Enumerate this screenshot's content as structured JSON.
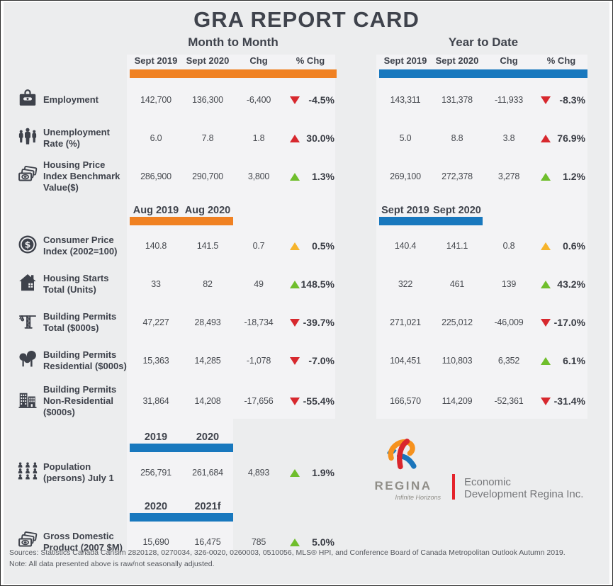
{
  "title": "GRA REPORT CARD",
  "colors": {
    "background": "#ECEDEE",
    "month_to_month_bar": "#F08122",
    "year_to_date_bar": "#1878BE",
    "trend_down_red": "#D7282E",
    "trend_up_green": "#6FBE2C",
    "trend_up_amber": "#F6B42C",
    "logo_divider_red": "#E5232B",
    "text_dark": "#3F434C"
  },
  "sections": {
    "mtm": {
      "title": "Month to Month",
      "columns": [
        "Sept 2019",
        "Sept 2020",
        "Chg",
        "% Chg"
      ]
    },
    "ytd": {
      "title": "Year to Date",
      "columns": [
        "Sept 2019",
        "Sept 2020",
        "Chg",
        "% Chg"
      ]
    }
  },
  "rows": [
    {
      "icon": "briefcase-icon",
      "label": "Employment",
      "mtm": {
        "v1": "142,700",
        "v2": "136,300",
        "chg": "-6,400",
        "trend": {
          "dir": "down",
          "color": "red"
        },
        "pct": "-4.5%"
      },
      "ytd": {
        "v1": "143,311",
        "v2": "131,378",
        "chg": "-11,933",
        "trend": {
          "dir": "down",
          "color": "red"
        },
        "pct": "-8.3%"
      }
    },
    {
      "icon": "people-icon",
      "label": "Unemployment Rate (%)",
      "mtm": {
        "v1": "6.0",
        "v2": "7.8",
        "chg": "1.8",
        "trend": {
          "dir": "up",
          "color": "red"
        },
        "pct": "30.0%"
      },
      "ytd": {
        "v1": "5.0",
        "v2": "8.8",
        "chg": "3.8",
        "trend": {
          "dir": "up",
          "color": "red"
        },
        "pct": "76.9%"
      }
    },
    {
      "icon": "banknotes-icon",
      "label": "Housing Price Index Benchmark Value($)",
      "mtm": {
        "v1": "286,900",
        "v2": "290,700",
        "chg": "3,800",
        "trend": {
          "dir": "up",
          "color": "green"
        },
        "pct": "1.3%"
      },
      "ytd": {
        "v1": "269,100",
        "v2": "272,378",
        "chg": "3,278",
        "trend": {
          "dir": "up",
          "color": "green"
        },
        "pct": "1.2%"
      }
    },
    {
      "pre": {
        "left": {
          "a": "Aug 2019",
          "b": "Aug 2020",
          "color": "orange"
        },
        "right": {
          "a": "Sept 2019",
          "b": "Sept 2020",
          "color": "blue"
        }
      },
      "icon": "dollar-coin-icon",
      "label": "Consumer Price Index (2002=100)",
      "mtm": {
        "v1": "140.8",
        "v2": "141.5",
        "chg": "0.7",
        "trend": {
          "dir": "up",
          "color": "amber"
        },
        "pct": "0.5%"
      },
      "ytd": {
        "v1": "140.4",
        "v2": "141.1",
        "chg": "0.8",
        "trend": {
          "dir": "up",
          "color": "amber"
        },
        "pct": "0.6%"
      }
    },
    {
      "icon": "house-icon",
      "label": "Housing Starts Total (Units)",
      "mtm": {
        "v1": "33",
        "v2": "82",
        "chg": "49",
        "trend": {
          "dir": "up",
          "color": "green"
        },
        "pct": "148.5%"
      },
      "ytd": {
        "v1": "322",
        "v2": "461",
        "chg": "139",
        "trend": {
          "dir": "up",
          "color": "green"
        },
        "pct": "43.2%"
      }
    },
    {
      "icon": "crane-icon",
      "label": "Building Permits Total ($000s)",
      "mtm": {
        "v1": "47,227",
        "v2": "28,493",
        "chg": "-18,734",
        "trend": {
          "dir": "down",
          "color": "red"
        },
        "pct": "-39.7%"
      },
      "ytd": {
        "v1": "271,021",
        "v2": "225,012",
        "chg": "-46,009",
        "trend": {
          "dir": "down",
          "color": "red"
        },
        "pct": "-17.0%"
      }
    },
    {
      "icon": "trees-icon",
      "label": "Building Permits Residential ($000s)",
      "mtm": {
        "v1": "15,363",
        "v2": "14,285",
        "chg": "-1,078",
        "trend": {
          "dir": "down",
          "color": "red"
        },
        "pct": "-7.0%"
      },
      "ytd": {
        "v1": "104,451",
        "v2": "110,803",
        "chg": "6,352",
        "trend": {
          "dir": "up",
          "color": "green"
        },
        "pct": "6.1%"
      }
    },
    {
      "icon": "buildings-icon",
      "label": "Building Permits Non-Residential ($000s)",
      "tall": true,
      "mtm": {
        "v1": "31,864",
        "v2": "14,208",
        "chg": "-17,656",
        "trend": {
          "dir": "down",
          "color": "red"
        },
        "pct": "-55.4%"
      },
      "ytd": {
        "v1": "166,570",
        "v2": "114,209",
        "chg": "-52,361",
        "trend": {
          "dir": "down",
          "color": "red"
        },
        "pct": "-31.4%"
      }
    },
    {
      "pre": {
        "left": {
          "a": "2019",
          "b": "2020",
          "color": "blue"
        },
        "right": null
      },
      "icon": "population-icon",
      "label": "Population (persons) July 1",
      "mtm": {
        "v1": "256,791",
        "v2": "261,684",
        "chg": "4,893",
        "trend": {
          "dir": "up",
          "color": "green"
        },
        "pct": "1.9%"
      },
      "ytd": null
    },
    {
      "pre": {
        "left": {
          "a": "2020",
          "b": "2021f",
          "color": "blue"
        },
        "right": null
      },
      "icon": "banknotes-icon",
      "label": "Gross Domestic Product (2007 $M)",
      "mtm": {
        "v1": "15,690",
        "v2": "16,475",
        "chg": "785",
        "trend": {
          "dir": "up",
          "color": "green"
        },
        "pct": "5.0%"
      },
      "ytd": null
    }
  ],
  "logo": {
    "brand": "REGINA",
    "tagline": "Infinite Horizons",
    "org_line1": "Economic",
    "org_line2": "Development Regina Inc."
  },
  "footer": {
    "sources": "Sources: Statistics Canada Cansim 2820128, 0270034, 326-0020, 0260003, 0510056, MLS® HPI, and Conference Board of Canada Metropolitan Outlook Autumn 2019.",
    "note": "Note: All data presented above is raw/not seasonally adjusted."
  }
}
